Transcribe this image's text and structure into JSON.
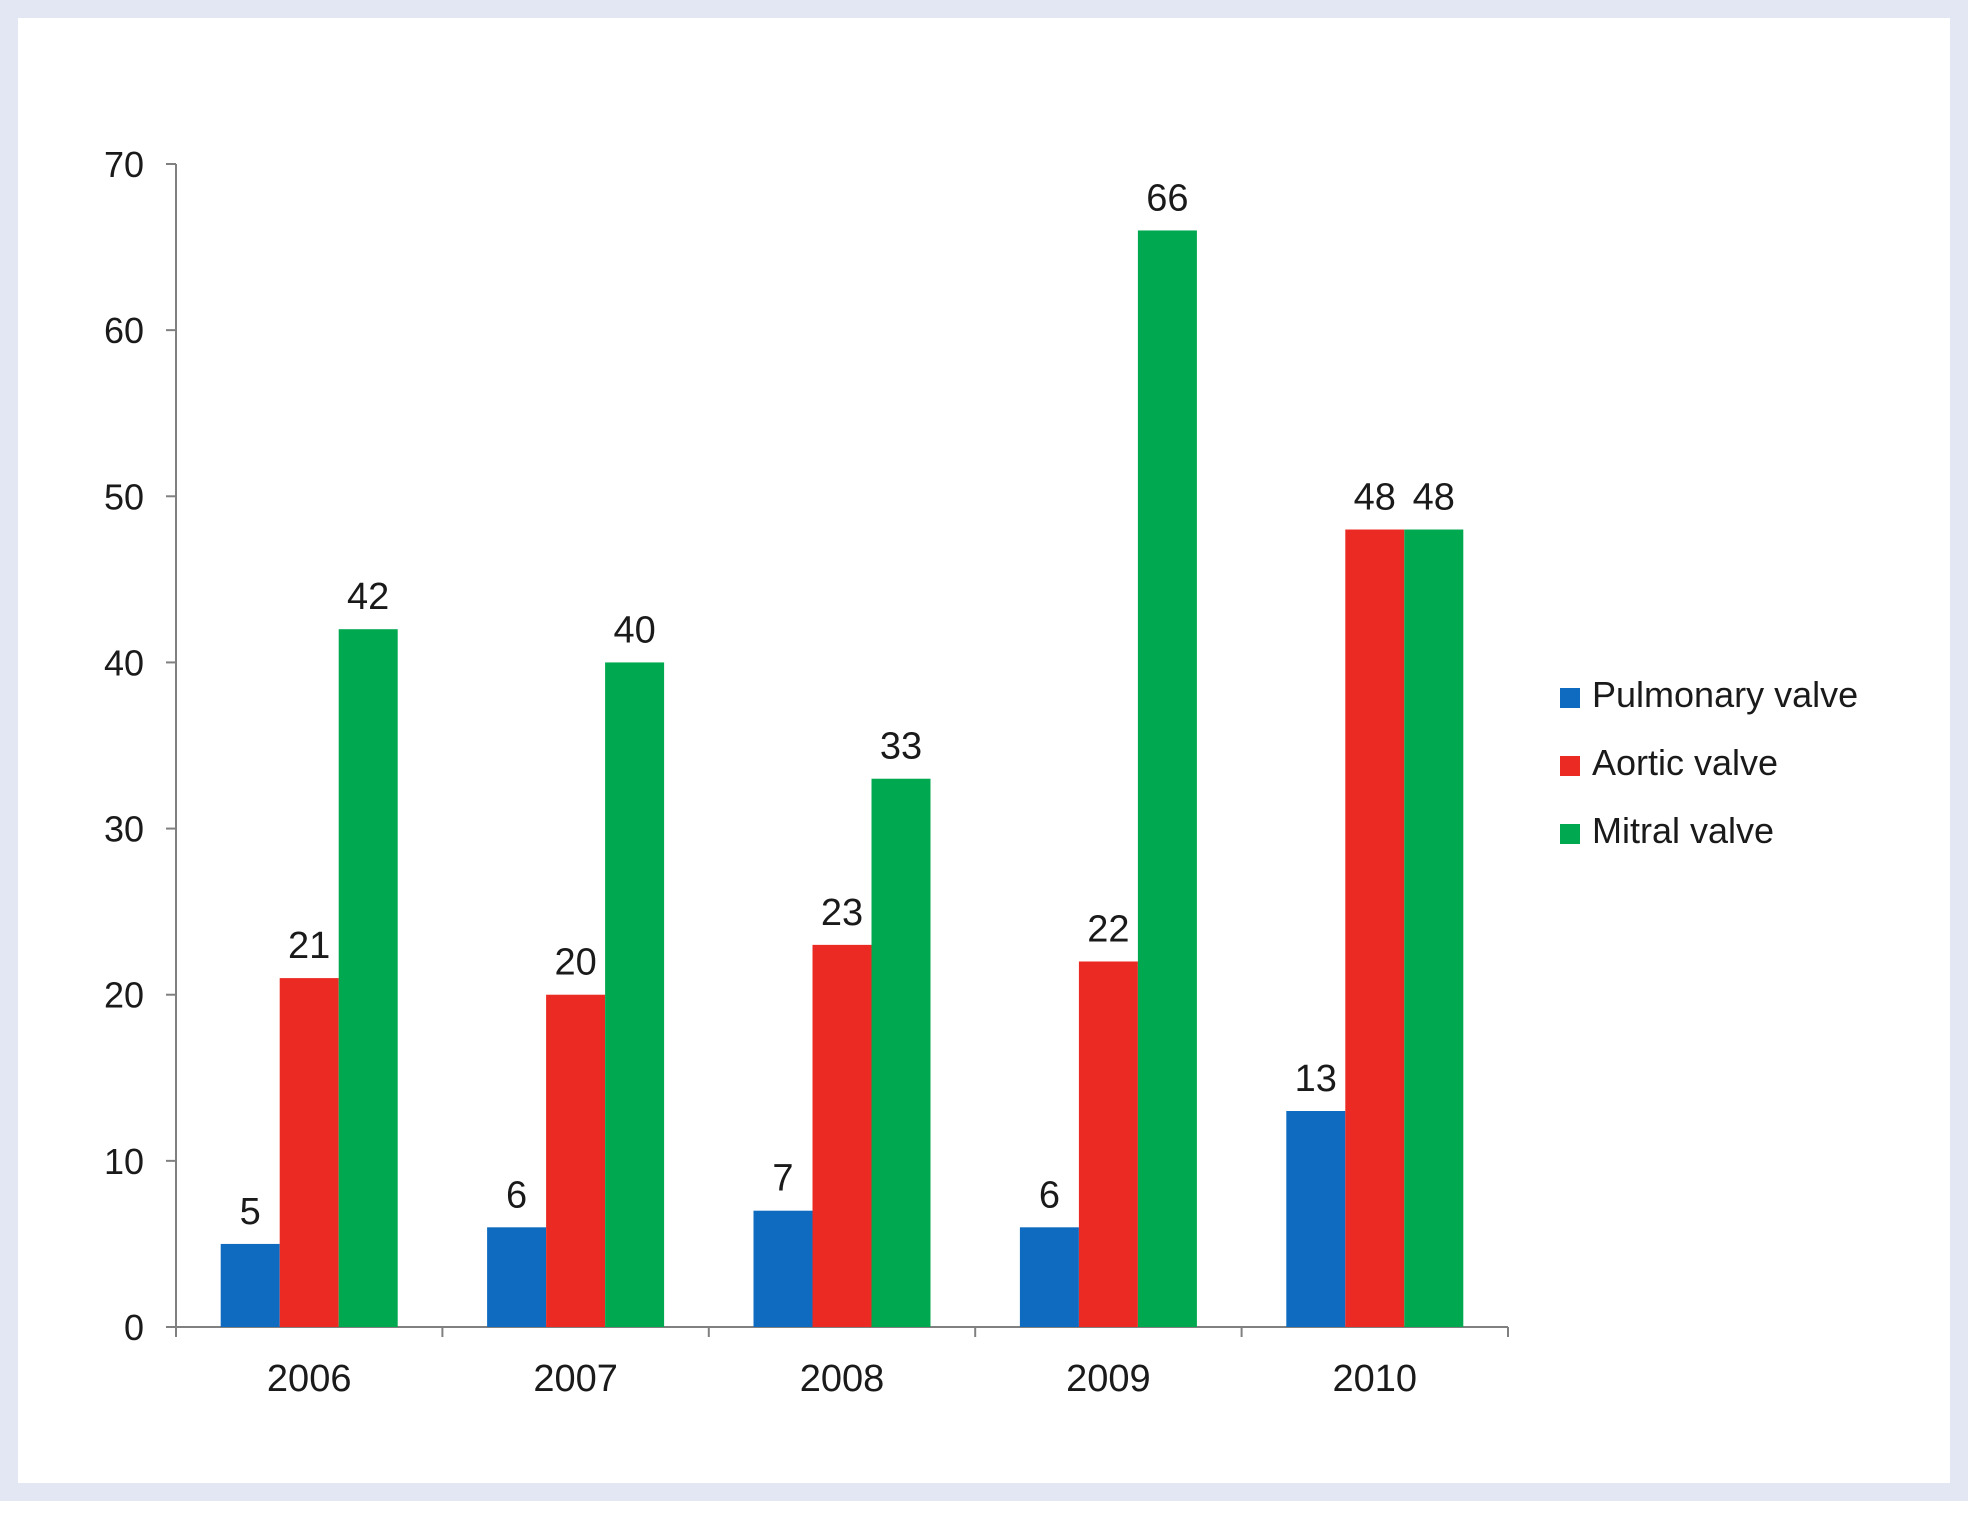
{
  "chart_data": {
    "type": "bar",
    "title": "",
    "xlabel": "",
    "ylabel": "",
    "categories": [
      "2006",
      "2007",
      "2008",
      "2009",
      "2010"
    ],
    "series": [
      {
        "name": "Pulmonary valve",
        "color": "#0e6bbf",
        "values": [
          5,
          6,
          7,
          6,
          13
        ]
      },
      {
        "name": "Aortic valve",
        "color": "#ec2a24",
        "values": [
          21,
          20,
          23,
          22,
          48
        ]
      },
      {
        "name": "Mitral valve",
        "color": "#00a94f",
        "values": [
          42,
          40,
          33,
          66,
          48
        ]
      }
    ],
    "ylim": [
      0,
      70
    ],
    "yticks": [
      0,
      10,
      20,
      30,
      40,
      50,
      60,
      70
    ],
    "grid": false,
    "legend_position": "right",
    "data_labels": true
  }
}
